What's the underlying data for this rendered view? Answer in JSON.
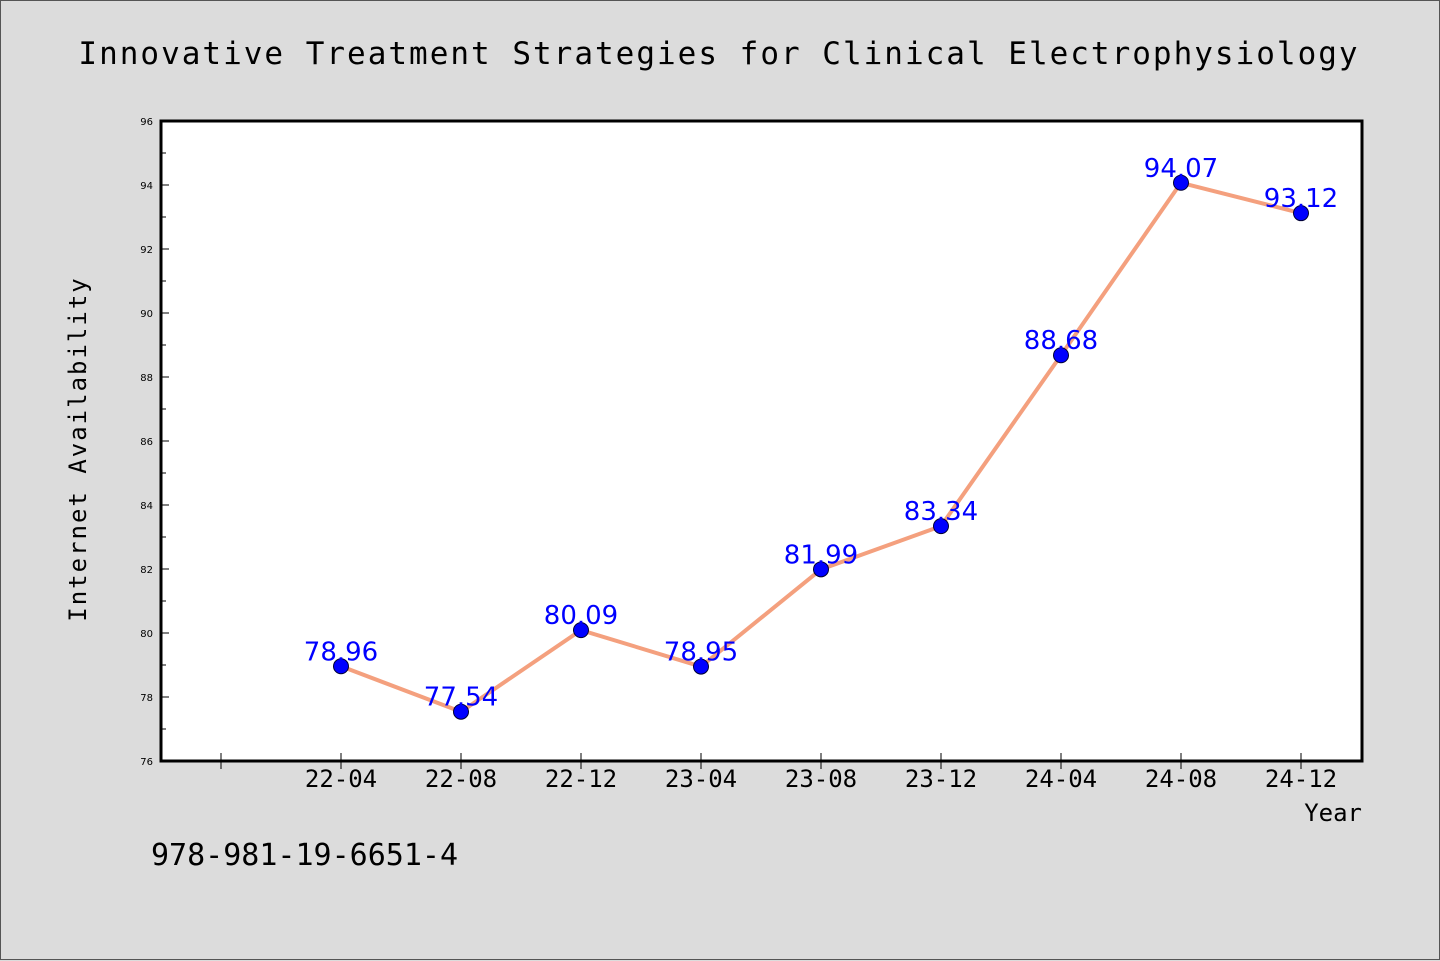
{
  "chart_data": {
    "type": "line",
    "title": "Innovative Treatment Strategies for Clinical Electrophysiology",
    "xlabel": "Year",
    "ylabel": "Internet Availability",
    "categories": [
      "22-04",
      "22-08",
      "22-12",
      "23-04",
      "23-08",
      "23-12",
      "24-04",
      "24-08",
      "24-12"
    ],
    "series": [
      {
        "values": [
          78.96,
          77.54,
          80.09,
          78.95,
          81.99,
          83.34,
          88.68,
          94.07,
          93.12
        ]
      }
    ],
    "data_labels": [
      "78.96",
      "77.54",
      "80.09",
      "78.95",
      "81.99",
      "83.34",
      "88.68",
      "94.07",
      "93.12"
    ],
    "ylim": [
      76,
      96
    ],
    "yticks": [
      76,
      78,
      80,
      82,
      84,
      86,
      88,
      90,
      92,
      94,
      96
    ],
    "ytick_labels": [
      "76",
      "78",
      "80",
      "82",
      "84",
      "86",
      "88",
      "90",
      "92",
      "94",
      "96"
    ],
    "grid": false,
    "legend": "none",
    "line_color": "#f4a07e",
    "marker_color": "#0000ff",
    "label_color": "#0000ff",
    "background": "#dcdcdc",
    "plot_background": "#ffffff"
  },
  "footnote": "978-981-19-6651-4"
}
